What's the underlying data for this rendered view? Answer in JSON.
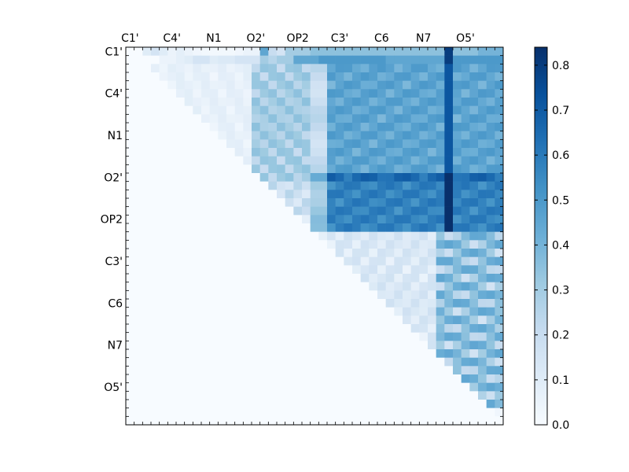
{
  "chart_data": {
    "type": "heatmap",
    "title": "",
    "xlabel": "",
    "ylabel": "",
    "n": 45,
    "x_tick_labels": [
      "C1'",
      "C4'",
      "N1",
      "O2'",
      "OP2",
      "C3'",
      "C6",
      "N7",
      "O5'"
    ],
    "y_tick_labels": [
      "C1'",
      "C4'",
      "N1",
      "O2'",
      "OP2",
      "C3'",
      "C6",
      "N7",
      "O5'"
    ],
    "tick_every": 5,
    "tick_start": 0.5,
    "colormap": "Blues",
    "colormap_colors": [
      "#f7fbff",
      "#deebf7",
      "#c6dbef",
      "#9ecae1",
      "#6baed6",
      "#4292c6",
      "#2171b5",
      "#08519c",
      "#08306b"
    ],
    "vmin": 0.0,
    "vmax": 0.84,
    "colorbar_ticks": [
      "0.0",
      "0.1",
      "0.2",
      "0.3",
      "0.4",
      "0.5",
      "0.6",
      "0.7",
      "0.8"
    ],
    "colorbar_tick_values": [
      0.0,
      0.1,
      0.2,
      0.3,
      0.4,
      0.5,
      0.6,
      0.7,
      0.8
    ],
    "regions_note_free": [],
    "blocks": [
      {
        "r": [
          0,
          20
        ],
        "c": [
          21,
          45
        ],
        "base": 0.47
      },
      {
        "r": [
          15,
          22
        ],
        "c": [
          22,
          45
        ],
        "base": 0.55
      },
      {
        "r": [
          20,
          35
        ],
        "c": [
          37,
          45
        ],
        "base": 0.2
      }
    ],
    "values": [
      [
        0,
        0,
        0.1,
        0.15,
        0.1,
        0.05,
        0.08,
        0.05,
        0.03,
        0.02,
        0.02,
        0.02,
        0.02,
        0.03,
        0.05,
        0.05,
        0.45,
        0.2,
        0.15,
        0.3,
        0.3,
        0.3,
        0.35,
        0.35,
        0.35,
        0.35,
        0.35,
        0.35,
        0.35,
        0.35,
        0.35,
        0.35,
        0.35,
        0.35,
        0.35,
        0.35,
        0.35,
        0.35,
        0.8,
        0.35,
        0.35,
        0.35,
        0.4,
        0.4,
        0.4
      ],
      [
        0,
        0,
        0,
        0,
        0.05,
        0.05,
        0.08,
        0.1,
        0.15,
        0.15,
        0.1,
        0.12,
        0.12,
        0.15,
        0.15,
        0.15,
        0.3,
        0.25,
        0.3,
        0.3,
        0.45,
        0.45,
        0.45,
        0.5,
        0.5,
        0.5,
        0.5,
        0.5,
        0.5,
        0.5,
        0.5,
        0.45,
        0.45,
        0.45,
        0.45,
        0.45,
        0.45,
        0.45,
        0.8,
        0.5,
        0.5,
        0.5,
        0.5,
        0.5,
        0.5
      ]
    ]
  }
}
